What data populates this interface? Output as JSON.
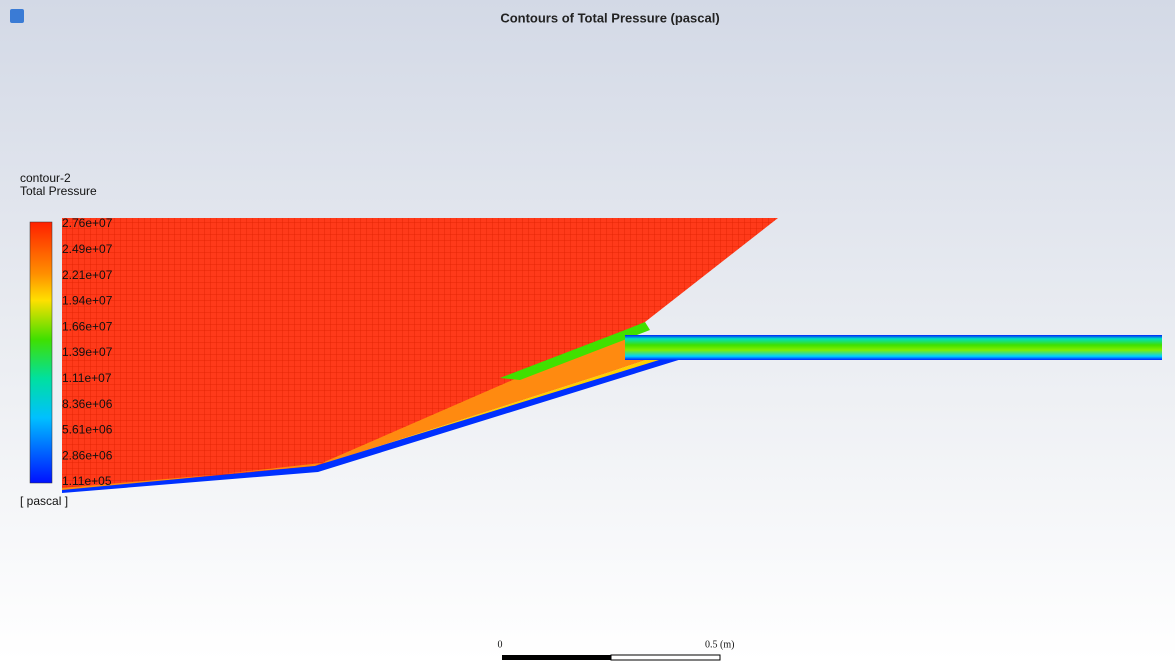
{
  "header": {
    "title": "Contours of Total Pressure (pascal)"
  },
  "legend": {
    "name": "contour-2",
    "variable": "Total Pressure",
    "labels": [
      "2.76e+07",
      "2.49e+07",
      "2.21e+07",
      "1.94e+07",
      "1.66e+07",
      "1.39e+07",
      "1.11e+07",
      "8.36e+06",
      "5.61e+06",
      "2.86e+06",
      "1.11e+05"
    ],
    "unit": "[ pascal ]"
  },
  "scale_bar": {
    "start": "0",
    "end": "0.5 (m)"
  }
}
